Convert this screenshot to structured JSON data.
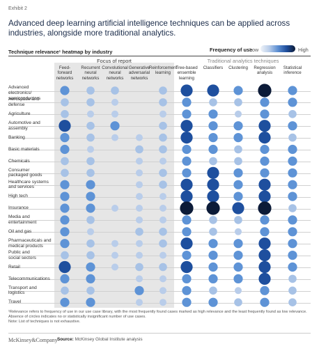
{
  "exhibit": "Exhibit 2",
  "title": "Advanced deep learning artificial intelligence techniques can be applied across industries, alongside more traditional analytics.",
  "subtitle": "Technique relevance¹ heatmap by industry",
  "legend": {
    "label": "Frequency of use",
    "low": "Low",
    "high": "High"
  },
  "groups": {
    "focus": "Focus of report",
    "traditional": "Traditional analytics techniques"
  },
  "colors": {
    "level1": "#b9cdea",
    "level2": "#a7c2e6",
    "level3": "#5e93d6",
    "level4": "#1e4f9e",
    "level5": "#0c1b38",
    "shade": "#e6e6e6"
  },
  "chart_data": {
    "type": "heatmap",
    "columns": [
      "Feed-forward networks",
      "Recurrent neural networks",
      "Convolutional neural networks",
      "Generative adversarial networks",
      "Reinforcement learning",
      "Tree-based ensemble learning",
      "Classifiers",
      "Clustering",
      "Regression analysis",
      "Statistical inference"
    ],
    "rows": [
      "Advanced electronics/ semiconductors",
      "Aerospace and defense",
      "Agriculture",
      "Automotive and assembly",
      "Banking",
      "Basic materials",
      "Chemicals",
      "Consumer packaged goods",
      "Healthcare systems and services",
      "High tech",
      "Insurance",
      "Media and entertainment",
      "Oil and gas",
      "Pharmaceuticals and medical products",
      "Public and social sectors",
      "Retail",
      "Telecommunications",
      "Transport and logistics",
      "Travel"
    ],
    "values": [
      [
        3,
        2,
        2,
        0,
        2,
        4,
        4,
        3,
        5,
        3
      ],
      [
        2,
        2,
        1,
        0,
        2,
        3,
        2,
        2,
        3,
        3
      ],
      [
        2,
        1,
        1,
        0,
        1,
        3,
        3,
        1,
        3,
        2
      ],
      [
        4,
        2,
        3,
        0,
        2,
        4,
        3,
        3,
        4,
        3
      ],
      [
        3,
        2,
        1,
        1,
        2,
        4,
        3,
        3,
        4,
        2
      ],
      [
        3,
        1,
        0,
        2,
        2,
        3,
        3,
        2,
        3,
        3
      ],
      [
        2,
        2,
        0,
        1,
        1,
        3,
        2,
        2,
        3,
        3
      ],
      [
        2,
        2,
        0,
        1,
        2,
        3,
        4,
        3,
        3,
        3
      ],
      [
        3,
        3,
        0,
        1,
        2,
        4,
        4,
        3,
        4,
        3
      ],
      [
        3,
        3,
        0,
        1,
        1,
        4,
        4,
        3,
        4,
        3
      ],
      [
        3,
        3,
        1,
        1,
        1,
        5,
        5,
        4,
        5,
        2
      ],
      [
        3,
        2,
        0,
        1,
        1,
        3,
        2,
        2,
        3,
        3
      ],
      [
        3,
        1,
        0,
        2,
        2,
        3,
        2,
        1,
        3,
        3
      ],
      [
        3,
        2,
        1,
        1,
        2,
        4,
        3,
        3,
        4,
        3
      ],
      [
        2,
        2,
        1,
        1,
        1,
        3,
        3,
        3,
        4,
        3
      ],
      [
        4,
        3,
        1,
        2,
        2,
        4,
        3,
        3,
        4,
        3
      ],
      [
        3,
        3,
        0,
        1,
        1,
        3,
        3,
        3,
        4,
        2
      ],
      [
        2,
        2,
        0,
        3,
        1,
        3,
        2,
        1,
        3,
        2
      ],
      [
        3,
        3,
        0,
        1,
        1,
        3,
        3,
        2,
        3,
        2
      ]
    ]
  },
  "column_headers": [
    "Feed-\nforward\nnetworks",
    "Recurrent\nneural\nnetworks",
    "Convolutional\nneural\nnetworks",
    "Generative\nadversarial\nnetworks",
    "Reinforcement\nlearning",
    "Tree-based\nensemble\nlearning",
    "Classifiers",
    "Clustering",
    "Regression\nanalysis",
    "Statistical\ninference"
  ],
  "row_labels": [
    "Advanced electronics/\nsemiconductors",
    "Aerospace and\ndefense",
    "Agriculture",
    "Automotive and\nassembly",
    "Banking",
    "Basic materials",
    "Chemicals",
    "Consumer\npackaged goods",
    "Healthcare systems\nand services",
    "High tech",
    "Insurance",
    "Media and\nentertainment",
    "Oil and gas",
    "Pharmaceuticals and\nmedical products",
    "Public and\nsocial sectors",
    "Retail",
    "Telecommunications",
    "Transport and\nlogistics",
    "Travel"
  ],
  "footnote": "¹Relevance refers to frequency of use in our use case library, with the most frequently found cases marked as high relevance and the least frequently found as low relevance. Absence of circles indicates no or statistically insignificant number of use cases.",
  "note": "Note: List of techniques is not exhaustive.",
  "brand": "McKinsey&Company",
  "source_label": "Source:",
  "source_text": "McKinsey Global Institute analysis"
}
